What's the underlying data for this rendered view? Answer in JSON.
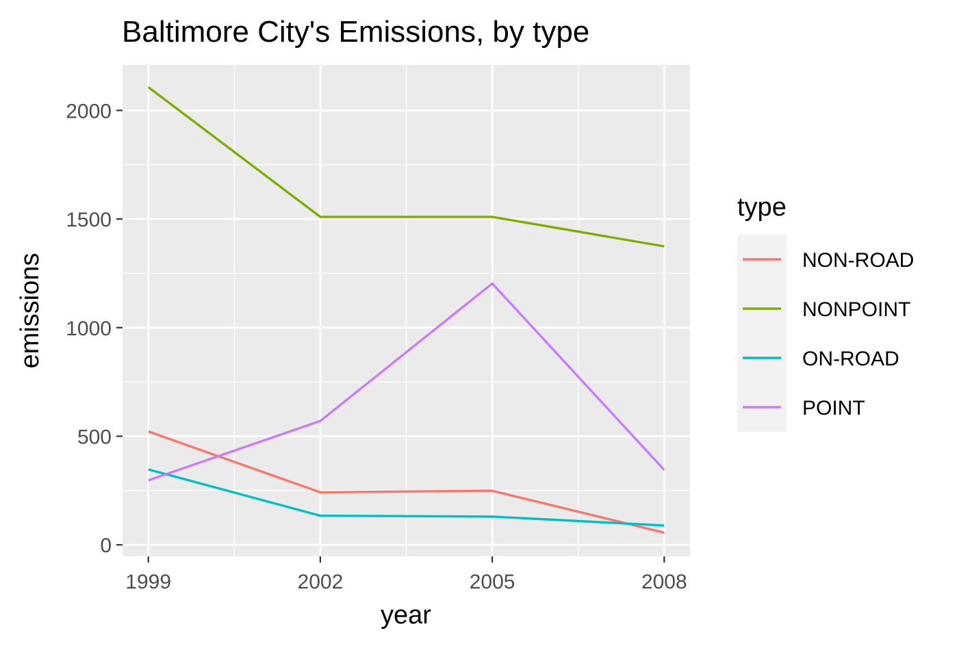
{
  "chart_data": {
    "type": "line",
    "title": "Baltimore City's Emissions, by type",
    "xlabel": "year",
    "ylabel": "emissions",
    "x": [
      1999,
      2002,
      2005,
      2008
    ],
    "x_tick_labels": [
      "1999",
      "2002",
      "2005",
      "2008"
    ],
    "xlim": [
      1998.55,
      2008.45
    ],
    "ylim": [
      -53,
      2209
    ],
    "y_ticks": [
      0,
      500,
      1000,
      1500,
      2000
    ],
    "y_tick_labels": [
      "0",
      "500",
      "1000",
      "1500",
      "2000"
    ],
    "grid": true,
    "legend": {
      "title": "type",
      "position": "right"
    },
    "series": [
      {
        "name": "NON-ROAD",
        "color": "#F8766D",
        "values": [
          522,
          242,
          249,
          56
        ]
      },
      {
        "name": "NONPOINT",
        "color": "#7CAE00",
        "values": [
          2107,
          1510,
          1510,
          1374
        ]
      },
      {
        "name": "ON-ROAD",
        "color": "#00BFC4",
        "values": [
          347,
          134,
          130,
          89
        ]
      },
      {
        "name": "POINT",
        "color": "#C77CFF",
        "values": [
          297,
          570,
          1203,
          345
        ]
      }
    ]
  }
}
